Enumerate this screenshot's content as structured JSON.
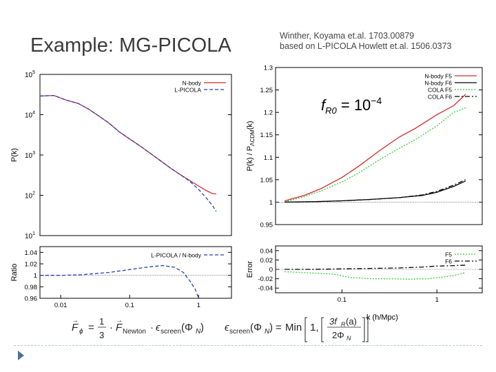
{
  "slide": {
    "title": "Example: MG-PICOLA",
    "credit_line1": "Winther, Koyama et.al. 1703.00879",
    "credit_line2": "based on L-PICOLA Howlett et.al. 1506.0373",
    "formula": {
      "lhs": "F",
      "lhs_sub": "ϕ",
      "eq": "=",
      "frac_num": "1",
      "frac_den": "3",
      "dot1": "·",
      "f_newton": "F",
      "f_newton_sub": "Newton",
      "dot2": "·",
      "eps_screen": "ϵ",
      "eps_sub": "screen",
      "arg_open": "(Φ",
      "arg_sub": "N",
      "arg_close": ")",
      "eps_screen2": "ϵ",
      "eps_sub2": "screen",
      "arg2_open": "(Φ",
      "arg2_sub": "N",
      "arg2_close": ")",
      "eq2": "=",
      "min": "Min",
      "one": "1,",
      "rhs_num_pre": "3f",
      "rhs_num_sub": "R",
      "rhs_num_post": "(a)",
      "rhs_den_pre": "2Φ",
      "rhs_den_sub": "N"
    },
    "colors": {
      "red": "#d62728",
      "green": "#33cc33",
      "blue": "#1f3fbf",
      "black": "#000000",
      "accent": "#4f6f9a"
    }
  },
  "chart_data": [
    {
      "type": "line",
      "title": "",
      "xlabel": "",
      "ylabel": "P(k)",
      "xscale": "log",
      "yscale": "log",
      "xlim": [
        0.005,
        3
      ],
      "ylim": [
        10,
        100000
      ],
      "ytick_labels": [
        {
          "value": 10,
          "base": "10",
          "exp": "1"
        },
        {
          "value": 100,
          "base": "10",
          "exp": "2"
        },
        {
          "value": 1000,
          "base": "10",
          "exp": "3"
        },
        {
          "value": 10000,
          "base": "10",
          "exp": "4"
        },
        {
          "value": 100000,
          "base": "10",
          "exp": "5"
        }
      ],
      "legend": "top-right",
      "series": [
        {
          "name": "N-body",
          "color": "red",
          "style": "solid",
          "x": [
            0.005,
            0.008,
            0.012,
            0.018,
            0.025,
            0.035,
            0.05,
            0.07,
            0.1,
            0.14,
            0.2,
            0.28,
            0.4,
            0.55,
            0.75,
            1.0,
            1.3,
            1.6,
            1.8
          ],
          "y": [
            29000,
            30000,
            23000,
            19000,
            14000,
            9500,
            6200,
            3800,
            2500,
            1700,
            1100,
            720,
            460,
            320,
            230,
            170,
            130,
            110,
            108
          ]
        },
        {
          "name": "L-PICOLA",
          "color": "blue",
          "style": "dashed",
          "x": [
            0.005,
            0.008,
            0.012,
            0.018,
            0.025,
            0.035,
            0.05,
            0.07,
            0.1,
            0.14,
            0.2,
            0.28,
            0.4,
            0.55,
            0.75,
            1.0,
            1.3,
            1.6,
            1.8
          ],
          "y": [
            29000,
            30000,
            23000,
            19000,
            14000,
            9500,
            6200,
            3800,
            2500,
            1700,
            1100,
            720,
            460,
            320,
            220,
            140,
            85,
            55,
            40
          ]
        }
      ]
    },
    {
      "type": "line",
      "title": "",
      "xlabel": "",
      "ylabel": "Ratio",
      "xscale": "log",
      "xlim": [
        0.005,
        3
      ],
      "ylim": [
        0.96,
        1.05
      ],
      "yticks": [
        "0.96",
        "0.98",
        "1",
        "1.02",
        "1.04"
      ],
      "xticks": [
        {
          "value": 0.01,
          "label": "0.01"
        },
        {
          "value": 0.1,
          "label": "0.1"
        },
        {
          "value": 1,
          "label": "1"
        }
      ],
      "legend": "top-right",
      "reference_line": 1,
      "series": [
        {
          "name": "L-PICOLA / N-body",
          "color": "blue",
          "style": "dashed",
          "x": [
            0.005,
            0.01,
            0.02,
            0.05,
            0.1,
            0.2,
            0.3,
            0.45,
            0.6,
            0.75,
            0.9,
            1.0
          ],
          "y": [
            1.0,
            1.0,
            1.001,
            1.005,
            1.01,
            1.015,
            1.017,
            1.014,
            1.005,
            0.99,
            0.975,
            0.96
          ]
        }
      ]
    },
    {
      "type": "line",
      "title": "",
      "xlabel": "",
      "ylabel": "P(k) / P",
      "ylabel_sub": "ΛCDM",
      "ylabel_post": "(k)",
      "xscale": "log",
      "xlim": [
        0.02,
        3
      ],
      "ylim": [
        0.95,
        1.3
      ],
      "yticks": [
        "0.95",
        "1",
        "1.05",
        "1.1",
        "1.15",
        "1.2",
        "1.25",
        "1.3"
      ],
      "annotation": {
        "pre": "f",
        "sub": "R0",
        "mid": " = 10",
        "sup": "−4"
      },
      "legend": "top-right",
      "reference_line": 1,
      "series": [
        {
          "name": "N-body F5",
          "color": "red",
          "style": "solid",
          "x": [
            0.025,
            0.04,
            0.06,
            0.1,
            0.15,
            0.25,
            0.4,
            0.6,
            1.0,
            1.5,
            2.0
          ],
          "y": [
            1.003,
            1.015,
            1.03,
            1.055,
            1.08,
            1.115,
            1.145,
            1.165,
            1.195,
            1.215,
            1.24
          ]
        },
        {
          "name": "N-body F6",
          "color": "black",
          "style": "solid",
          "x": [
            0.025,
            0.05,
            0.1,
            0.2,
            0.4,
            0.7,
            1.0,
            1.5,
            2.0
          ],
          "y": [
            1.0,
            1.001,
            1.003,
            1.006,
            1.01,
            1.015,
            1.022,
            1.035,
            1.047
          ]
        },
        {
          "name": "COLA F5",
          "color": "green",
          "style": "dotted",
          "x": [
            0.025,
            0.04,
            0.06,
            0.1,
            0.15,
            0.25,
            0.4,
            0.6,
            1.0,
            1.5,
            2.0
          ],
          "y": [
            1.001,
            1.012,
            1.025,
            1.045,
            1.065,
            1.095,
            1.12,
            1.14,
            1.17,
            1.2,
            1.21
          ]
        },
        {
          "name": "COLA F6",
          "color": "black",
          "style": "dashdot",
          "x": [
            0.025,
            0.05,
            0.1,
            0.2,
            0.4,
            0.7,
            1.0,
            1.5,
            2.0
          ],
          "y": [
            1.0,
            1.001,
            1.003,
            1.006,
            1.01,
            1.016,
            1.024,
            1.038,
            1.05
          ]
        }
      ]
    },
    {
      "type": "line",
      "title": "",
      "xlabel": "k    (h/Mpc)",
      "ylabel": "Error",
      "xscale": "log",
      "xlim": [
        0.02,
        3
      ],
      "ylim": [
        -0.05,
        0.05
      ],
      "yticks": [
        "-0.04",
        "-0.02",
        "0",
        "0.02",
        "0.04"
      ],
      "xticks": [
        {
          "value": 0.1,
          "label": "0.1"
        },
        {
          "value": 1,
          "label": "1"
        }
      ],
      "legend": "top-right",
      "reference_line": 0,
      "series": [
        {
          "name": "F5",
          "color": "green",
          "style": "dotted",
          "x": [
            0.025,
            0.05,
            0.08,
            0.12,
            0.2,
            0.3,
            0.5,
            0.8,
            1.2,
            1.6,
            2.0
          ],
          "y": [
            -0.005,
            -0.008,
            -0.01,
            -0.017,
            -0.02,
            -0.02,
            -0.021,
            -0.02,
            -0.016,
            -0.012,
            -0.007
          ]
        },
        {
          "name": "F6",
          "color": "black",
          "style": "dashdot",
          "x": [
            0.025,
            0.05,
            0.1,
            0.2,
            0.4,
            0.7,
            1.0,
            1.5,
            2.0
          ],
          "y": [
            0.0,
            0.0,
            0.001,
            0.002,
            0.003,
            0.005,
            0.007,
            0.008,
            0.009
          ]
        }
      ]
    }
  ]
}
